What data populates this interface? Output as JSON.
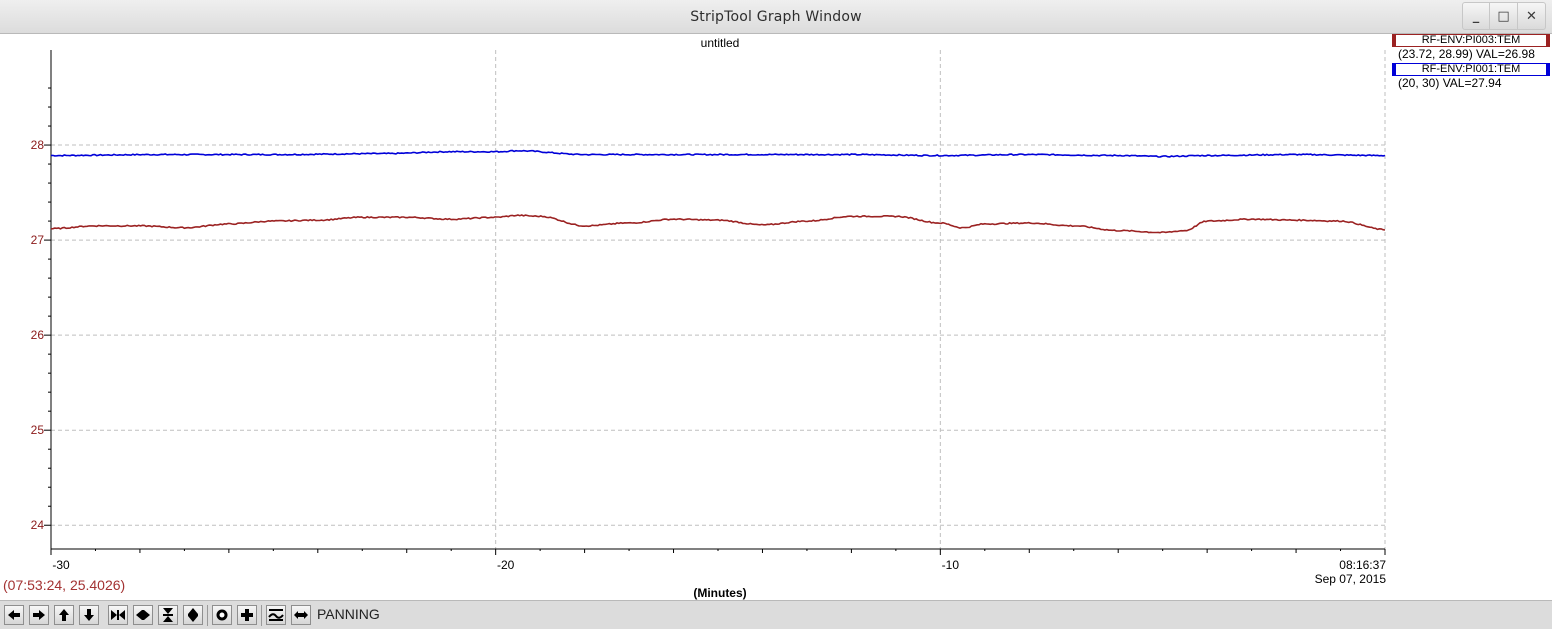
{
  "window": {
    "title": "StripTool Graph Window",
    "controls": {
      "minimize": "_",
      "maximize": "□",
      "close": "✕"
    }
  },
  "plot": {
    "title": "untitled",
    "x_axis_label": "(Minutes)",
    "x_end_time": "08:16:37",
    "x_end_date": "Sep 07, 2015",
    "cursor_readout": "(07:53:24, 25.4026)",
    "grid": true,
    "grid_color": "#bfbfbf",
    "y_tick_color": "#8b1a1a"
  },
  "chart_data": {
    "type": "line",
    "title": "untitled",
    "xlabel": "(Minutes)",
    "ylabel": "",
    "xlim": [
      -30,
      0
    ],
    "ylim": [
      23.75,
      29.0
    ],
    "x_ticks": [
      -30,
      -20,
      -10
    ],
    "x_tick_labels": [
      "-30",
      "-20",
      "-10"
    ],
    "y_ticks": [
      24,
      25,
      26,
      27,
      28
    ],
    "y_tick_labels": [
      "24",
      "25",
      "26",
      "27",
      "28"
    ],
    "series": [
      {
        "name": "RF-ENV:PI001:TEM",
        "color": "#0000d8",
        "x": [
          -30,
          -27.5,
          -25,
          -22.5,
          -21,
          -20,
          -19.5,
          -18,
          -16,
          -14,
          -12,
          -10,
          -8,
          -6,
          -5,
          -4,
          -2,
          0
        ],
        "values": [
          27.89,
          27.9,
          27.9,
          27.91,
          27.93,
          27.93,
          27.94,
          27.9,
          27.9,
          27.9,
          27.9,
          27.89,
          27.9,
          27.89,
          27.88,
          27.89,
          27.9,
          27.89
        ]
      },
      {
        "name": "RF-ENV:PI003:TEM",
        "color": "#9b2222",
        "x": [
          -30,
          -29,
          -28,
          -27,
          -26,
          -25,
          -24,
          -23,
          -22,
          -21,
          -20,
          -19.5,
          -19,
          -18,
          -17,
          -16,
          -15,
          -14,
          -13,
          -12,
          -11,
          -10,
          -9.5,
          -9,
          -8,
          -7,
          -6,
          -5,
          -4.5,
          -4,
          -3,
          -2,
          -1,
          0
        ],
        "values": [
          27.12,
          27.15,
          27.15,
          27.13,
          27.17,
          27.2,
          27.21,
          27.24,
          27.24,
          27.22,
          27.24,
          27.26,
          27.25,
          27.15,
          27.18,
          27.22,
          27.21,
          27.16,
          27.2,
          27.25,
          27.25,
          27.18,
          27.13,
          27.17,
          27.18,
          27.15,
          27.1,
          27.08,
          27.1,
          27.2,
          27.22,
          27.21,
          27.2,
          27.11
        ]
      }
    ]
  },
  "legend": [
    {
      "name": "RF-ENV:PI003:TEM",
      "range": "(23.72, 28.99) VAL=26.98",
      "color": "#9b2222"
    },
    {
      "name": "RF-ENV:PI001:TEM",
      "range": "(20, 30) VAL=27.94",
      "color": "#0000d8"
    }
  ],
  "toolbar": {
    "mode_label": "PANNING",
    "buttons": [
      "pan-left-icon",
      "pan-right-icon",
      "pan-up-icon",
      "pan-down-icon",
      "zoom-in-horizontal-icon",
      "zoom-out-horizontal-icon",
      "zoom-in-vertical-icon",
      "zoom-out-vertical-icon",
      "auto-scale-icon",
      "refresh-icon",
      "toggle-graph-icon",
      "toggle-scroll-icon"
    ]
  }
}
